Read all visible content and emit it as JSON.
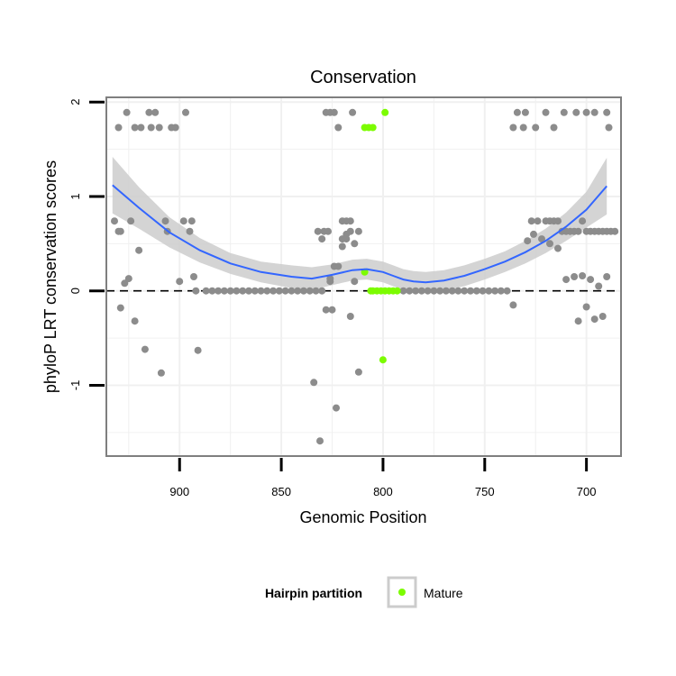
{
  "chart_data": {
    "type": "scatter",
    "title": "Conservation",
    "xlabel": "Genomic Position",
    "ylabel": "phyloP LRT conservation scores",
    "x_reversed": true,
    "xlim": [
      683,
      936
    ],
    "ylim": [
      -1.75,
      2.05
    ],
    "x_ticks": [
      900,
      850,
      800,
      750,
      700
    ],
    "y_ticks": [
      -1,
      0,
      1,
      2
    ],
    "grid": true,
    "reference_line": {
      "y": 0,
      "style": "dashed"
    },
    "legend": {
      "title": "Hairpin partition",
      "placement": "bottom",
      "entries": [
        {
          "label": "Mature",
          "color": "#7cfc00"
        }
      ]
    },
    "colors": {
      "background": "#ffffff",
      "grid": "#f0f0f0",
      "panel_border": "#7f7f7f",
      "points": "#8c8c8c",
      "mature": "#7cfc00",
      "smooth_line": "#3366ff",
      "confidence_band": "#cccccc"
    },
    "series": [
      {
        "name": "",
        "role": "points",
        "x": [
          932,
          930,
          930,
          929,
          929,
          927,
          926,
          925,
          924,
          922,
          922,
          920,
          919,
          917,
          915,
          914,
          912,
          910,
          909,
          907,
          906,
          904,
          902,
          900,
          898,
          897,
          895,
          894,
          893,
          892,
          891,
          828,
          826,
          824,
          822,
          820,
          818,
          816,
          814,
          812,
          829,
          826,
          824,
          820,
          818,
          816,
          814,
          812,
          831,
          828,
          826,
          823,
          820,
          816,
          834,
          832,
          830,
          827,
          825,
          822,
          818,
          815,
          736,
          734,
          731,
          729,
          727,
          724,
          720,
          718,
          716,
          714,
          712,
          710,
          708,
          706,
          704,
          702,
          700,
          698,
          696,
          694,
          692,
          690,
          688,
          686,
          726,
          722,
          718,
          714,
          710,
          706,
          702,
          698,
          694,
          690,
          736,
          730,
          725,
          720,
          716,
          711,
          705,
          700,
          696,
          690,
          704,
          700,
          696,
          692,
          689
        ],
        "y": [
          0.74,
          1.73,
          0.63,
          -0.18,
          0.63,
          0.08,
          1.89,
          0.13,
          0.74,
          -0.32,
          1.73,
          0.43,
          1.73,
          -0.62,
          1.89,
          1.73,
          1.89,
          1.73,
          -0.87,
          0.74,
          0.63,
          1.73,
          1.73,
          0.1,
          0.74,
          1.89,
          0.63,
          0.74,
          0.15,
          0.0,
          -0.63,
          1.89,
          1.89,
          1.89,
          1.73,
          0.74,
          0.74,
          0.63,
          0.5,
          0.63,
          0.63,
          0.13,
          0.26,
          0.47,
          0.55,
          -0.27,
          0.1,
          -0.86,
          -1.59,
          -0.2,
          0.1,
          -1.24,
          0.55,
          0.74,
          -0.97,
          0.63,
          0.55,
          0.63,
          -0.2,
          0.26,
          0.6,
          1.89,
          1.73,
          1.89,
          1.73,
          0.53,
          0.74,
          0.74,
          0.74,
          0.74,
          0.74,
          0.74,
          0.63,
          0.63,
          0.63,
          0.63,
          0.63,
          0.74,
          0.63,
          0.63,
          0.63,
          0.63,
          0.63,
          0.63,
          0.63,
          0.63,
          0.6,
          0.55,
          0.5,
          0.45,
          0.12,
          0.15,
          0.16,
          0.12,
          0.05,
          0.15,
          -0.15,
          1.89,
          1.73,
          1.89,
          1.73,
          1.89,
          1.89,
          1.89,
          1.89,
          1.89,
          -0.32,
          -0.17,
          -0.3,
          -0.27,
          1.73
        ]
      },
      {
        "name": "",
        "role": "zero-score-band",
        "x": [
          887,
          884,
          881,
          878,
          875,
          872,
          869,
          866,
          863,
          860,
          857,
          854,
          851,
          848,
          845,
          842,
          839,
          836,
          833,
          830,
          790,
          787,
          784,
          781,
          778,
          775,
          772,
          769,
          766,
          763,
          760,
          757,
          754,
          751,
          748,
          745,
          742,
          739
        ],
        "y": [
          0,
          0,
          0,
          0,
          0,
          0,
          0,
          0,
          0,
          0,
          0,
          0,
          0,
          0,
          0,
          0,
          0,
          0,
          0,
          0,
          0,
          0,
          0,
          0,
          0,
          0,
          0,
          0,
          0,
          0,
          0,
          0,
          0,
          0,
          0,
          0,
          0,
          0
        ]
      },
      {
        "name": "Mature",
        "role": "mature",
        "x": [
          809,
          807,
          805,
          799,
          809,
          806,
          805,
          803,
          801,
          799,
          797,
          795,
          793,
          800
        ],
        "y": [
          1.73,
          1.73,
          1.73,
          1.89,
          0.2,
          0.0,
          0.0,
          0.0,
          0.0,
          0.0,
          0.0,
          0.0,
          0.0,
          -0.73
        ]
      },
      {
        "name": "",
        "role": "smooth",
        "x": [
          933,
          920,
          905,
          890,
          875,
          860,
          845,
          835,
          825,
          815,
          808,
          800,
          795,
          790,
          785,
          779,
          770,
          760,
          750,
          740,
          730,
          720,
          710,
          700,
          690
        ],
        "y": [
          1.12,
          0.88,
          0.62,
          0.43,
          0.29,
          0.2,
          0.15,
          0.13,
          0.17,
          0.22,
          0.23,
          0.2,
          0.16,
          0.12,
          0.1,
          0.09,
          0.11,
          0.16,
          0.23,
          0.31,
          0.41,
          0.53,
          0.68,
          0.86,
          1.11
        ],
        "band_upper": [
          1.42,
          1.1,
          0.78,
          0.56,
          0.4,
          0.31,
          0.27,
          0.25,
          0.28,
          0.33,
          0.34,
          0.31,
          0.27,
          0.23,
          0.21,
          0.2,
          0.22,
          0.27,
          0.34,
          0.42,
          0.53,
          0.66,
          0.83,
          1.05,
          1.41
        ],
        "band_lower": [
          0.82,
          0.66,
          0.46,
          0.3,
          0.18,
          0.09,
          0.03,
          0.01,
          0.06,
          0.11,
          0.12,
          0.09,
          0.05,
          0.01,
          -0.01,
          -0.02,
          0.0,
          0.05,
          0.12,
          0.2,
          0.29,
          0.4,
          0.53,
          0.67,
          0.81
        ]
      }
    ]
  }
}
